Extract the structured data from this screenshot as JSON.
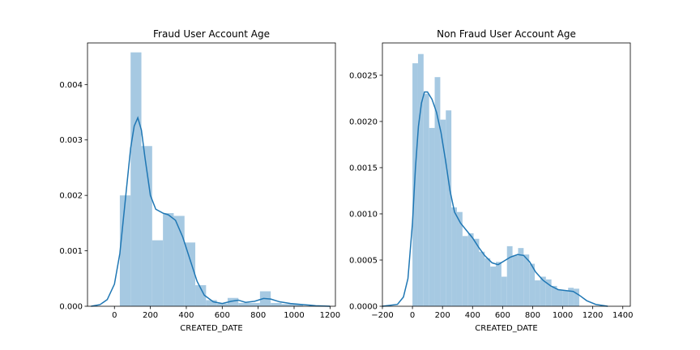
{
  "chart_data": [
    {
      "type": "bar",
      "title": "Fraud User Account Age",
      "xlabel": "CREATED_DATE",
      "ylabel": "",
      "xlim": [
        -150,
        1230
      ],
      "ylim": [
        0,
        0.00475
      ],
      "xticks": [
        0,
        200,
        400,
        600,
        800,
        1000,
        1200
      ],
      "yticks": [
        0.0,
        0.001,
        0.002,
        0.003,
        0.004
      ],
      "ytick_labels": [
        "0.000",
        "0.001",
        "0.002",
        "0.003",
        "0.004"
      ],
      "hist_color": "#a6c9e2",
      "kde_color": "#1f77b4",
      "bins": [
        {
          "x0": 30,
          "x1": 90,
          "v": 0.002
        },
        {
          "x0": 90,
          "x1": 150,
          "v": 0.00458
        },
        {
          "x0": 150,
          "x1": 210,
          "v": 0.00289
        },
        {
          "x0": 210,
          "x1": 270,
          "v": 0.00119
        },
        {
          "x0": 270,
          "x1": 330,
          "v": 0.00168
        },
        {
          "x0": 330,
          "x1": 390,
          "v": 0.00163
        },
        {
          "x0": 390,
          "x1": 450,
          "v": 0.00115
        },
        {
          "x0": 450,
          "x1": 510,
          "v": 0.00038
        },
        {
          "x0": 510,
          "x1": 570,
          "v": 0.00011
        },
        {
          "x0": 570,
          "x1": 630,
          "v": 5e-05
        },
        {
          "x0": 630,
          "x1": 690,
          "v": 0.00015
        },
        {
          "x0": 690,
          "x1": 750,
          "v": 6e-05
        },
        {
          "x0": 750,
          "x1": 810,
          "v": 6e-05
        },
        {
          "x0": 810,
          "x1": 870,
          "v": 0.00027
        },
        {
          "x0": 870,
          "x1": 930,
          "v": 6e-05
        },
        {
          "x0": 930,
          "x1": 990,
          "v": 4e-05
        },
        {
          "x0": 990,
          "x1": 1050,
          "v": 4e-05
        }
      ],
      "kde": [
        [
          -130,
          0.0
        ],
        [
          -80,
          3e-05
        ],
        [
          -40,
          0.00012
        ],
        [
          0,
          0.0004
        ],
        [
          30,
          0.00095
        ],
        [
          60,
          0.0019
        ],
        [
          90,
          0.00285
        ],
        [
          110,
          0.00325
        ],
        [
          130,
          0.0034
        ],
        [
          150,
          0.00318
        ],
        [
          170,
          0.00268
        ],
        [
          200,
          0.002
        ],
        [
          230,
          0.00175
        ],
        [
          270,
          0.00168
        ],
        [
          300,
          0.00165
        ],
        [
          340,
          0.00155
        ],
        [
          380,
          0.00125
        ],
        [
          420,
          0.00085
        ],
        [
          460,
          0.00045
        ],
        [
          500,
          0.0002
        ],
        [
          550,
          8e-05
        ],
        [
          600,
          5e-05
        ],
        [
          650,
          9e-05
        ],
        [
          690,
          0.00011
        ],
        [
          730,
          7e-05
        ],
        [
          780,
          9e-05
        ],
        [
          830,
          0.00014
        ],
        [
          870,
          0.00013
        ],
        [
          920,
          8e-05
        ],
        [
          980,
          5e-05
        ],
        [
          1050,
          3e-05
        ],
        [
          1120,
          1e-05
        ],
        [
          1200,
          0.0
        ]
      ]
    },
    {
      "type": "bar",
      "title": "Non Fraud User Account Age",
      "xlabel": "CREATED_DATE",
      "ylabel": "",
      "xlim": [
        -200,
        1450
      ],
      "ylim": [
        0,
        0.00285
      ],
      "xticks": [
        -200,
        0,
        200,
        400,
        600,
        800,
        1000,
        1200,
        1400
      ],
      "xtick_labels": [
        "−200",
        "0",
        "200",
        "400",
        "600",
        "800",
        "1000",
        "1200",
        "1400"
      ],
      "yticks": [
        0.0,
        0.0005,
        0.001,
        0.0015,
        0.002,
        0.0025
      ],
      "ytick_labels": [
        "0.0000",
        "0.0005",
        "0.0010",
        "0.0015",
        "0.0020",
        "0.0025"
      ],
      "hist_color": "#a6c9e2",
      "kde_color": "#1f77b4",
      "bins": [
        {
          "x0": 0,
          "x1": 37,
          "v": 0.00263
        },
        {
          "x0": 37,
          "x1": 74,
          "v": 0.00273
        },
        {
          "x0": 74,
          "x1": 111,
          "v": 0.0023
        },
        {
          "x0": 111,
          "x1": 148,
          "v": 0.00193
        },
        {
          "x0": 148,
          "x1": 185,
          "v": 0.00248
        },
        {
          "x0": 185,
          "x1": 222,
          "v": 0.00202
        },
        {
          "x0": 222,
          "x1": 259,
          "v": 0.00212
        },
        {
          "x0": 259,
          "x1": 296,
          "v": 0.00107
        },
        {
          "x0": 296,
          "x1": 333,
          "v": 0.00102
        },
        {
          "x0": 333,
          "x1": 370,
          "v": 0.00076
        },
        {
          "x0": 370,
          "x1": 407,
          "v": 0.00079
        },
        {
          "x0": 407,
          "x1": 444,
          "v": 0.00073
        },
        {
          "x0": 444,
          "x1": 481,
          "v": 0.00059
        },
        {
          "x0": 481,
          "x1": 518,
          "v": 0.00052
        },
        {
          "x0": 518,
          "x1": 555,
          "v": 0.00043
        },
        {
          "x0": 555,
          "x1": 592,
          "v": 0.00048
        },
        {
          "x0": 592,
          "x1": 629,
          "v": 0.00032
        },
        {
          "x0": 629,
          "x1": 666,
          "v": 0.00065
        },
        {
          "x0": 666,
          "x1": 703,
          "v": 0.00055
        },
        {
          "x0": 703,
          "x1": 740,
          "v": 0.00063
        },
        {
          "x0": 740,
          "x1": 777,
          "v": 0.00056
        },
        {
          "x0": 777,
          "x1": 814,
          "v": 0.00046
        },
        {
          "x0": 814,
          "x1": 851,
          "v": 0.00028
        },
        {
          "x0": 851,
          "x1": 888,
          "v": 0.00032
        },
        {
          "x0": 888,
          "x1": 925,
          "v": 0.00029
        },
        {
          "x0": 925,
          "x1": 962,
          "v": 0.00022
        },
        {
          "x0": 962,
          "x1": 999,
          "v": 0.00018
        },
        {
          "x0": 999,
          "x1": 1036,
          "v": 0.00017
        },
        {
          "x0": 1036,
          "x1": 1073,
          "v": 0.0002
        },
        {
          "x0": 1073,
          "x1": 1110,
          "v": 0.00019
        }
      ],
      "kde": [
        [
          -200,
          0.0
        ],
        [
          -100,
          2e-05
        ],
        [
          -60,
          0.0001
        ],
        [
          -30,
          0.0003
        ],
        [
          0,
          0.0009
        ],
        [
          20,
          0.0015
        ],
        [
          40,
          0.00195
        ],
        [
          60,
          0.0022
        ],
        [
          80,
          0.00232
        ],
        [
          100,
          0.00232
        ],
        [
          130,
          0.00224
        ],
        [
          160,
          0.0021
        ],
        [
          190,
          0.00188
        ],
        [
          220,
          0.00158
        ],
        [
          250,
          0.00125
        ],
        [
          280,
          0.00102
        ],
        [
          320,
          0.0009
        ],
        [
          360,
          0.00082
        ],
        [
          400,
          0.00074
        ],
        [
          440,
          0.00064
        ],
        [
          480,
          0.00055
        ],
        [
          530,
          0.00047
        ],
        [
          570,
          0.00045
        ],
        [
          610,
          0.00049
        ],
        [
          650,
          0.00053
        ],
        [
          700,
          0.00056
        ],
        [
          740,
          0.00055
        ],
        [
          780,
          0.00048
        ],
        [
          820,
          0.00037
        ],
        [
          870,
          0.00028
        ],
        [
          920,
          0.00022
        ],
        [
          970,
          0.00018
        ],
        [
          1020,
          0.00017
        ],
        [
          1070,
          0.00016
        ],
        [
          1110,
          0.00012
        ],
        [
          1160,
          6e-05
        ],
        [
          1220,
          2e-05
        ],
        [
          1300,
          0.0
        ]
      ]
    }
  ]
}
